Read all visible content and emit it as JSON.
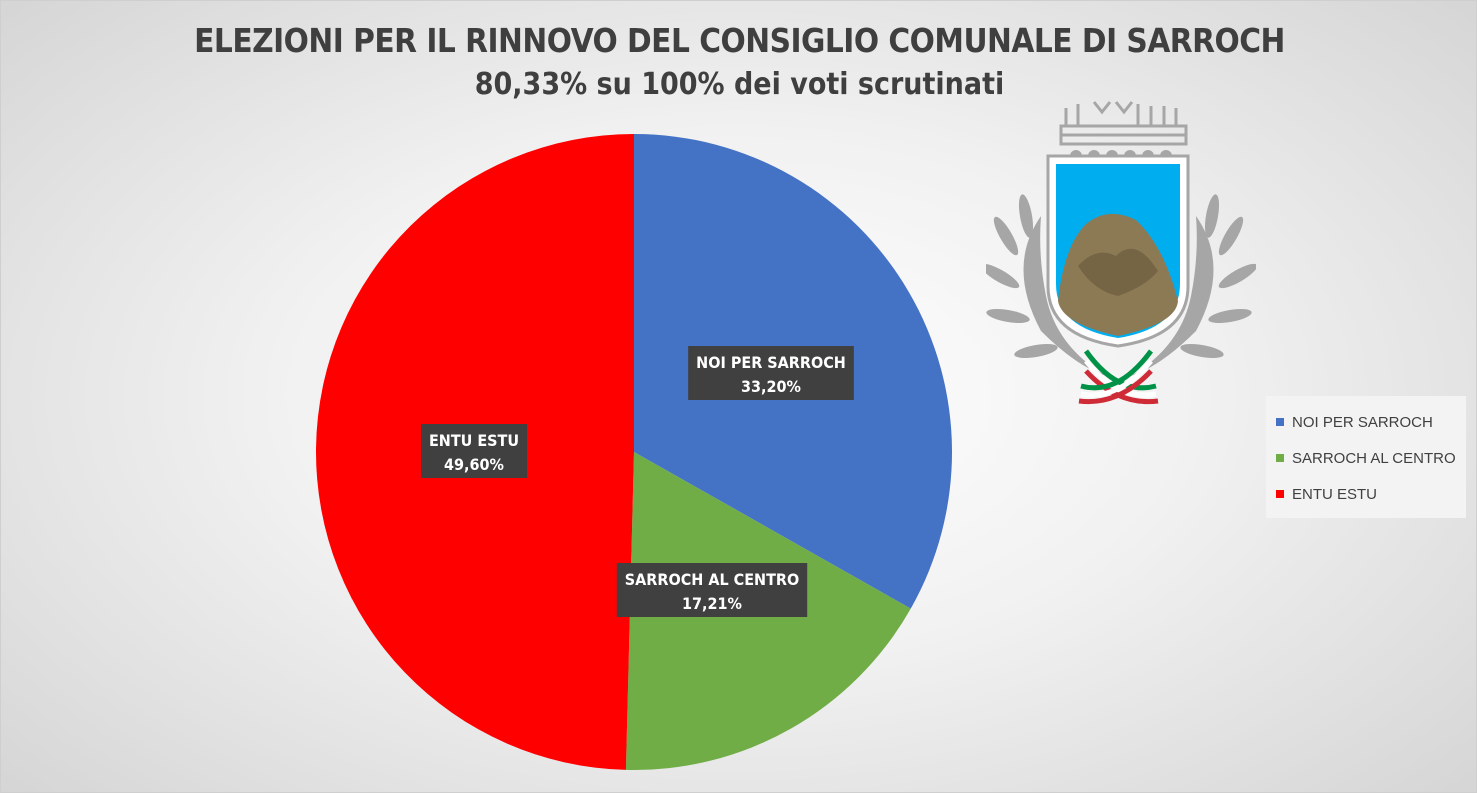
{
  "chart_data": {
    "type": "pie",
    "title": "ELEZIONI PER IL RINNOVO DEL CONSIGLIO COMUNALE DI SARROCH",
    "subtitle": "80,33% su 100% dei voti scrutinati",
    "slices": [
      {
        "name": "NOI PER SARROCH",
        "value": 33.2,
        "label": "33,20%",
        "color": "#4472c4"
      },
      {
        "name": "SARROCH AL CENTRO",
        "value": 17.21,
        "label": "17,21%",
        "color": "#70ad47"
      },
      {
        "name": "ENTU ESTU",
        "value": 49.6,
        "label": "49,60%",
        "color": "#ff0000"
      }
    ],
    "legend_position": "right",
    "grid": false
  },
  "logo": {
    "name": "Sarroch coat of arms",
    "colors": {
      "shield": "#00aeef",
      "wreath": "#a6a6a6",
      "rock": "#8c7a55",
      "flag_green": "#009246",
      "flag_red": "#ce2b37"
    }
  }
}
